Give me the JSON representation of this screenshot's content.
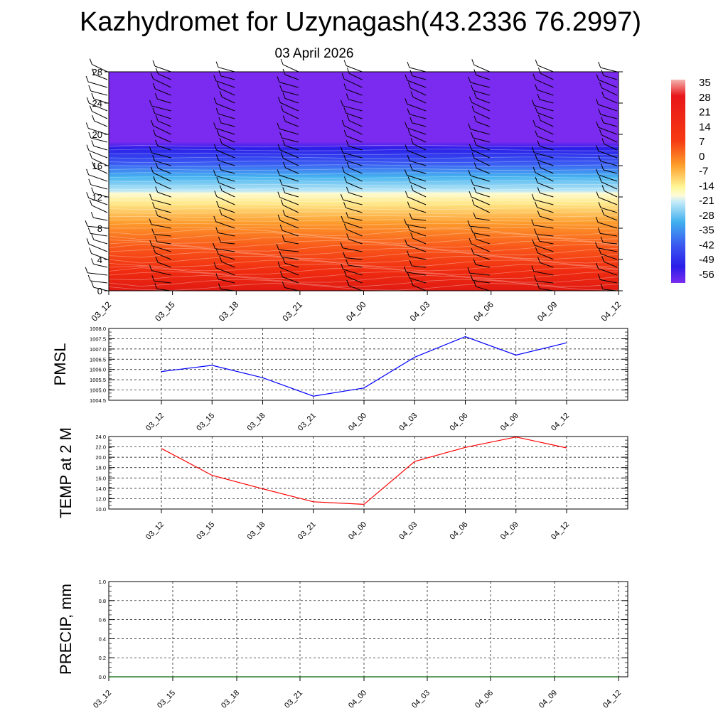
{
  "header": {
    "title": "Kazhydromet for Uzynagash(43.2336 76.2997)",
    "date": "03 April 2026"
  },
  "chart_data": [
    {
      "type": "heatmap",
      "title": "",
      "x_ticks": [
        "03_12",
        "03_15",
        "03_18",
        "03_21",
        "04_00",
        "04_03",
        "04_06",
        "04_09",
        "04_12"
      ],
      "y_ticks": [
        "0",
        "4",
        "8",
        "12",
        "16",
        "20",
        "24",
        "28"
      ],
      "ylim": [
        0,
        28
      ],
      "colorbar_labels": [
        "35",
        "28",
        "21",
        "14",
        "7",
        "0",
        "-7",
        "-14",
        "-21",
        "-28",
        "-35",
        "-42",
        "-49",
        "-56"
      ],
      "bands": [
        {
          "from": 0,
          "to": 2,
          "value": 25
        },
        {
          "from": 2,
          "to": 6,
          "value": 20
        },
        {
          "from": 6,
          "to": 10,
          "value": 10
        },
        {
          "from": 10,
          "to": 12.5,
          "value": 0
        },
        {
          "from": 12.5,
          "to": 14,
          "value": -15
        },
        {
          "from": 14,
          "to": 16,
          "value": -30
        },
        {
          "from": 16,
          "to": 18.5,
          "value": -50
        },
        {
          "from": 18.5,
          "to": 28,
          "value": -60
        }
      ],
      "colors": {
        "warm": "#e41a1c",
        "orange": "#fd8d3c",
        "yellow": "#ffffb2",
        "cyan": "#41b6f0",
        "blue": "#2b3bff",
        "violet": "#7b2bf0"
      }
    },
    {
      "type": "line",
      "ylabel": "PMSL",
      "x": [
        "03_12",
        "03_15",
        "03_18",
        "03_21",
        "04_00",
        "04_03",
        "04_06",
        "04_09",
        "04_12"
      ],
      "series": [
        {
          "values": [
            1005.9,
            1006.2,
            1005.6,
            1004.7,
            1005.1,
            1006.6,
            1007.6,
            1006.7,
            1007.3
          ],
          "color": "#0000ff"
        }
      ],
      "ylim": [
        1004.5,
        1008.0
      ],
      "y_ticks": [
        "1008.0",
        "1007.5",
        "1007.0",
        "1006.5",
        "1006.0",
        "1005.5",
        "1005.0",
        "1004.5"
      ],
      "grid": true
    },
    {
      "type": "line",
      "ylabel": "TEMP at 2 M",
      "x": [
        "03_12",
        "03_15",
        "03_18",
        "03_21",
        "04_00",
        "04_03",
        "04_06",
        "04_09",
        "04_12"
      ],
      "series": [
        {
          "values": [
            21.7,
            16.5,
            13.9,
            11.4,
            10.9,
            19.2,
            21.9,
            23.9,
            21.8
          ],
          "color": "#ff0000"
        }
      ],
      "ylim": [
        10.0,
        24.0
      ],
      "y_ticks": [
        "24.0",
        "22.0",
        "20.0",
        "18.0",
        "16.0",
        "14.0",
        "12.0",
        "10.0"
      ],
      "grid": true
    },
    {
      "type": "line",
      "ylabel": "PRECIP, mm",
      "x": [
        "03_12",
        "03_15",
        "03_18",
        "03_21",
        "04_00",
        "04_03",
        "04_06",
        "04_09",
        "04_12"
      ],
      "series": [
        {
          "values": [
            0,
            0,
            0,
            0,
            0,
            0,
            0,
            0,
            0
          ],
          "color": "#006400"
        }
      ],
      "ylim": [
        0.0,
        1.0
      ],
      "y_ticks": [
        "1.0",
        "0.8",
        "0.6",
        "0.4",
        "0.2",
        "0.0"
      ],
      "grid": true
    }
  ]
}
